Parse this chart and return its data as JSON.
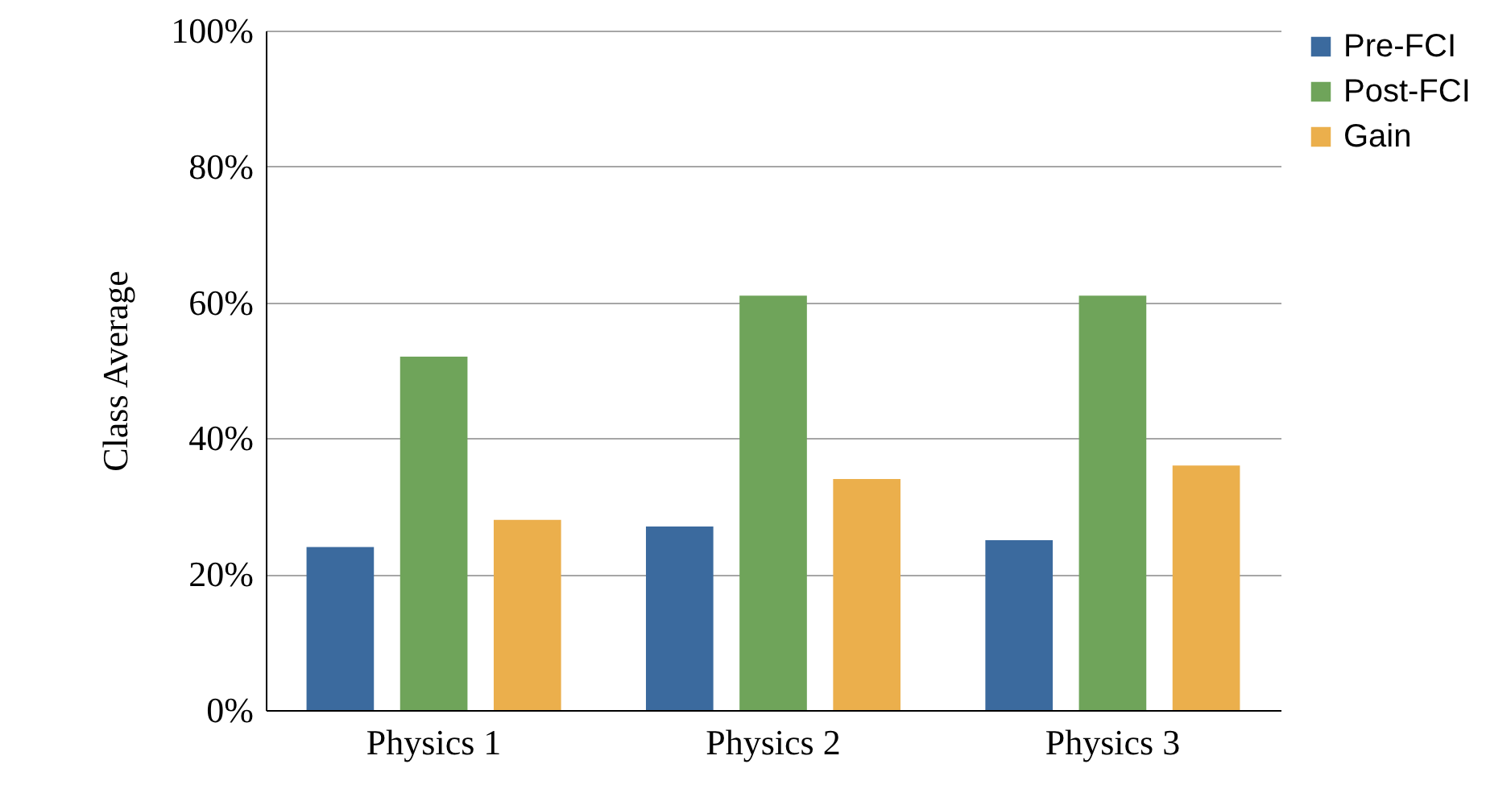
{
  "chart_data": {
    "type": "bar",
    "ylabel": "Class Average",
    "categories": [
      "Physics 1",
      "Physics 2",
      "Physics 3"
    ],
    "series": [
      {
        "name": "Pre-FCI",
        "color": "#3b6a9e",
        "values": [
          24,
          27,
          25
        ]
      },
      {
        "name": "Post-FCI",
        "color": "#6fa45a",
        "values": [
          52,
          61,
          61
        ]
      },
      {
        "name": "Gain",
        "color": "#ebaf4c",
        "values": [
          28,
          34,
          36
        ]
      }
    ],
    "ylim": [
      0,
      100
    ],
    "yticks": [
      {
        "value": 0,
        "label": "0%"
      },
      {
        "value": 20,
        "label": "20%"
      },
      {
        "value": 40,
        "label": "40%"
      },
      {
        "value": 60,
        "label": "60%"
      },
      {
        "value": 80,
        "label": "80%"
      },
      {
        "value": 100,
        "label": "100%"
      }
    ],
    "grid": "y",
    "legend": "right"
  }
}
